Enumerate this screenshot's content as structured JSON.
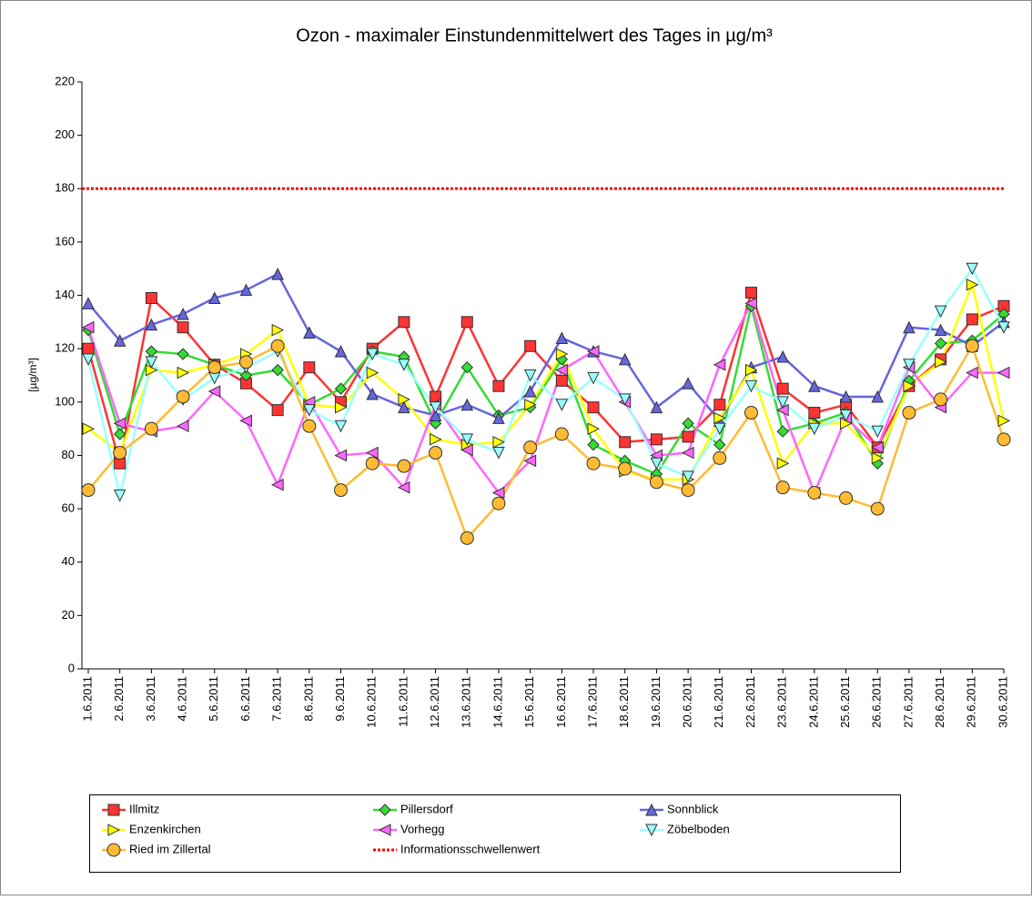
{
  "chart_data": {
    "type": "line",
    "title": "Ozon -  maximaler Einstundenmittelwert des Tages in µg/m³",
    "ylabel": "[µg/m³]",
    "categories": [
      "1.6.2011",
      "2.6.2011",
      "3.6.2011",
      "4.6.2011",
      "5.6.2011",
      "6.6.2011",
      "7.6.2011",
      "8.6.2011",
      "9.6.2011",
      "10.6.2011",
      "11.6.2011",
      "12.6.2011",
      "13.6.2011",
      "14.6.2011",
      "15.6.2011",
      "16.6.2011",
      "17.6.2011",
      "18.6.2011",
      "19.6.2011",
      "20.6.2011",
      "21.6.2011",
      "22.6.2011",
      "23.6.2011",
      "24.6.2011",
      "25.6.2011",
      "26.6.2011",
      "27.6.2011",
      "28.6.2011",
      "29.6.2011",
      "30.6.2011"
    ],
    "ylim": [
      0,
      220
    ],
    "yticks": [
      0,
      20,
      40,
      60,
      80,
      100,
      120,
      140,
      160,
      180,
      200,
      220
    ],
    "grid": false,
    "series": [
      {
        "name": "Illmitz",
        "color": "#ff3333",
        "marker": "square",
        "values": [
          120,
          77,
          139,
          128,
          114,
          107,
          97,
          113,
          100,
          120,
          130,
          102,
          130,
          106,
          121,
          108,
          98,
          85,
          86,
          87,
          99,
          141,
          105,
          96,
          99,
          83,
          106,
          116,
          131,
          136
        ]
      },
      {
        "name": "Pillersdorf",
        "color": "#33dd33",
        "marker": "diamond",
        "values": [
          127,
          88,
          119,
          118,
          114,
          110,
          112,
          99,
          105,
          119,
          117,
          92,
          113,
          95,
          98,
          116,
          84,
          78,
          73,
          92,
          84,
          136,
          89,
          92,
          96,
          77,
          108,
          122,
          123,
          133
        ]
      },
      {
        "name": "Sonnblick",
        "color": "#6666dd",
        "marker": "triangle-up",
        "values": [
          137,
          123,
          129,
          133,
          139,
          142,
          148,
          126,
          119,
          103,
          98,
          95,
          99,
          94,
          104,
          124,
          119,
          116,
          98,
          107,
          93,
          113,
          117,
          106,
          102,
          102,
          128,
          127,
          121,
          130
        ]
      },
      {
        "name": "Enzenkirchen",
        "color": "#ffff00",
        "marker": "triangle-right",
        "values": [
          90,
          81,
          112,
          111,
          114,
          118,
          127,
          99,
          98,
          111,
          101,
          86,
          84,
          85,
          99,
          118,
          90,
          74,
          71,
          71,
          94,
          112,
          77,
          92,
          92,
          79,
          106,
          115,
          144,
          93
        ]
      },
      {
        "name": "Vorhegg",
        "color": "#ff66ff",
        "marker": "triangle-left",
        "values": [
          128,
          92,
          89,
          91,
          104,
          93,
          69,
          100,
          80,
          81,
          68,
          99,
          82,
          66,
          78,
          112,
          119,
          100,
          80,
          81,
          114,
          137,
          97,
          66,
          94,
          83,
          113,
          98,
          111,
          111
        ]
      },
      {
        "name": "Zöbelboden",
        "color": "#99ffff",
        "marker": "triangle-down",
        "values": [
          116,
          65,
          115,
          101,
          109,
          113,
          119,
          97,
          91,
          118,
          114,
          98,
          86,
          81,
          110,
          99,
          109,
          101,
          77,
          72,
          90,
          106,
          100,
          90,
          95,
          89,
          114,
          134,
          150,
          128
        ]
      },
      {
        "name": "Ried im Zillertal",
        "color": "#ffbb33",
        "marker": "circle",
        "values": [
          67,
          81,
          90,
          102,
          113,
          115,
          121,
          91,
          67,
          77,
          76,
          81,
          49,
          62,
          83,
          88,
          77,
          75,
          70,
          67,
          79,
          96,
          68,
          66,
          64,
          60,
          96,
          101,
          121,
          86
        ]
      }
    ],
    "reference_lines": [
      {
        "name": "Informationsschwellenwert",
        "value": 180,
        "color": "#ff0000"
      }
    ]
  }
}
